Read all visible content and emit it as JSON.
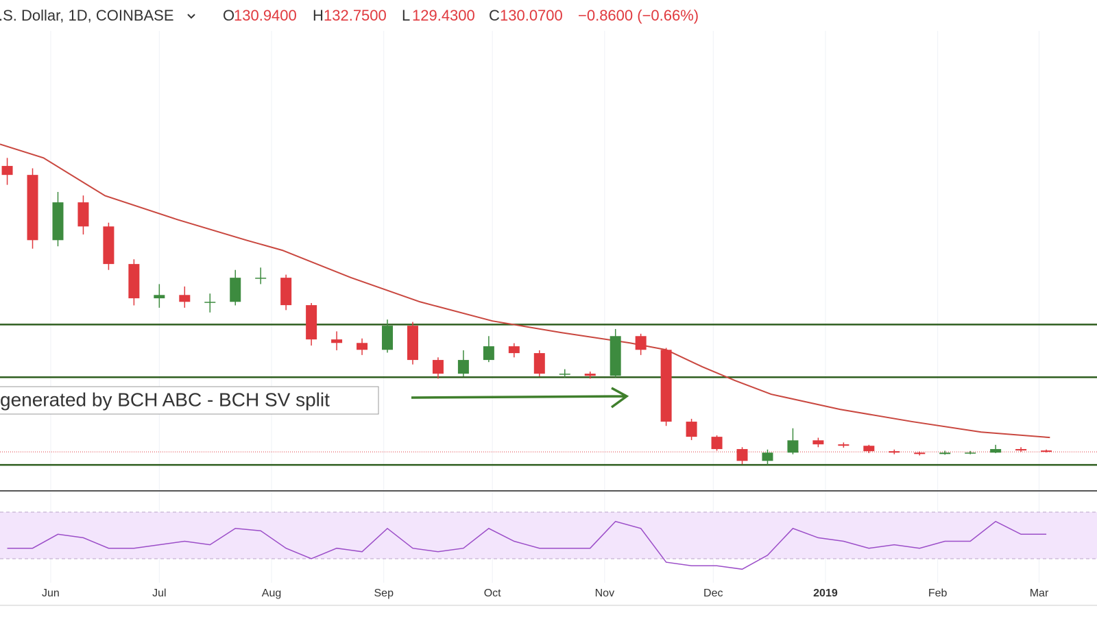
{
  "chart_data": {
    "type": "candlestick",
    "header": {
      "symbol": ".S. Dollar, 1D, COINBASE",
      "ohlc": [
        {
          "label": "O",
          "value": "130.9400"
        },
        {
          "label": "H",
          "value": "132.7500"
        },
        {
          "label": "L",
          "value": "129.4300"
        },
        {
          "label": "C",
          "value": "130.0700"
        }
      ],
      "change": "−0.8600 (−0.66%)"
    },
    "annotation": "generated by BCH ABC - BCH SV split",
    "x": [
      -12,
      -5,
      2,
      9,
      16,
      23,
      30,
      37,
      44,
      51,
      58,
      65,
      72,
      79,
      86,
      93,
      100,
      107,
      114,
      121,
      128,
      135,
      142,
      149,
      156,
      163,
      170,
      177,
      184,
      191,
      198,
      205,
      212,
      219,
      226,
      233,
      240,
      247,
      254,
      261,
      268,
      275
    ],
    "open": [
      1340,
      1302,
      1026,
      1186,
      1084,
      925,
      780,
      794,
      765,
      765,
      867,
      867,
      751,
      606,
      591,
      562,
      664,
      519,
      461,
      519,
      577,
      548,
      461,
      461,
      452,
      620,
      562,
      258,
      194,
      142,
      92,
      127,
      179,
      162,
      156,
      133,
      127,
      121,
      127,
      127,
      142,
      136
    ],
    "high": [
      1374,
      1330,
      1230,
      1215,
      1100,
      945,
      840,
      830,
      800,
      900,
      910,
      880,
      760,
      640,
      610,
      690,
      680,
      530,
      560,
      620,
      590,
      560,
      480,
      470,
      650,
      630,
      570,
      270,
      200,
      150,
      140,
      230,
      190,
      170,
      160,
      140,
      132,
      135,
      134,
      160,
      150,
      140
    ],
    "low": [
      1260,
      990,
      1000,
      1050,
      900,
      750,
      740,
      740,
      720,
      750,
      840,
      730,
      580,
      560,
      540,
      550,
      500,
      440,
      450,
      510,
      530,
      450,
      445,
      440,
      445,
      540,
      240,
      180,
      135,
      78,
      75,
      120,
      150,
      148,
      125,
      120,
      115,
      118,
      120,
      125,
      130,
      128
    ],
    "close": [
      1302,
      1026,
      1186,
      1084,
      925,
      780,
      794,
      765,
      765,
      867,
      867,
      751,
      606,
      591,
      562,
      664,
      519,
      461,
      519,
      577,
      548,
      461,
      461,
      452,
      620,
      562,
      258,
      194,
      142,
      92,
      127,
      179,
      162,
      156,
      133,
      127,
      121,
      127,
      127,
      142,
      136,
      130.07
    ],
    "up_color": "#3d8b3f",
    "down_color": "#e0393e",
    "xlim": [
      -14,
      289
    ],
    "ylim": [
      0,
      1900
    ],
    "xticks": [
      {
        "value": 0,
        "label": "Jun"
      },
      {
        "value": 30,
        "label": "Jul"
      },
      {
        "value": 61,
        "label": "Aug"
      },
      {
        "value": 92,
        "label": "Sep"
      },
      {
        "value": 122,
        "label": "Oct"
      },
      {
        "value": 153,
        "label": "Nov"
      },
      {
        "value": 183,
        "label": "Dec"
      },
      {
        "value": 214,
        "label": "2019"
      },
      {
        "value": 245,
        "label": "Feb"
      },
      {
        "value": 273,
        "label": "Mar"
      }
    ],
    "moving_average": {
      "color": "#c9473f",
      "x": [
        -14,
        -2,
        15,
        35,
        54,
        64,
        83,
        102,
        122,
        141,
        160,
        170,
        180,
        189,
        199,
        218,
        238,
        257,
        276
      ],
      "values": [
        1432,
        1374,
        1214,
        1113,
        1026,
        983,
        867,
        765,
        684,
        635,
        591,
        562,
        490,
        432,
        374,
        310,
        258,
        214,
        191
      ]
    },
    "hlines": [
      {
        "value": 669,
        "color": "#2e5e1e"
      },
      {
        "value": 446,
        "color": "#2e5e1e"
      },
      {
        "value": 75,
        "color": "#2e5e1e"
      }
    ],
    "rsi": {
      "color": "#9b4dc8",
      "band_color": "#f3e5fc",
      "ylim": [
        10,
        90
      ],
      "bands": [
        30,
        70
      ],
      "values": [
        39,
        39,
        51,
        48,
        39,
        39,
        42,
        45,
        42,
        56,
        54,
        39,
        30,
        39,
        36,
        56,
        39,
        36,
        39,
        56,
        45,
        39,
        39,
        39,
        62,
        56,
        27,
        24,
        24,
        21,
        33,
        56,
        48,
        45,
        39,
        42,
        39,
        45,
        45,
        62,
        51,
        51
      ]
    }
  }
}
